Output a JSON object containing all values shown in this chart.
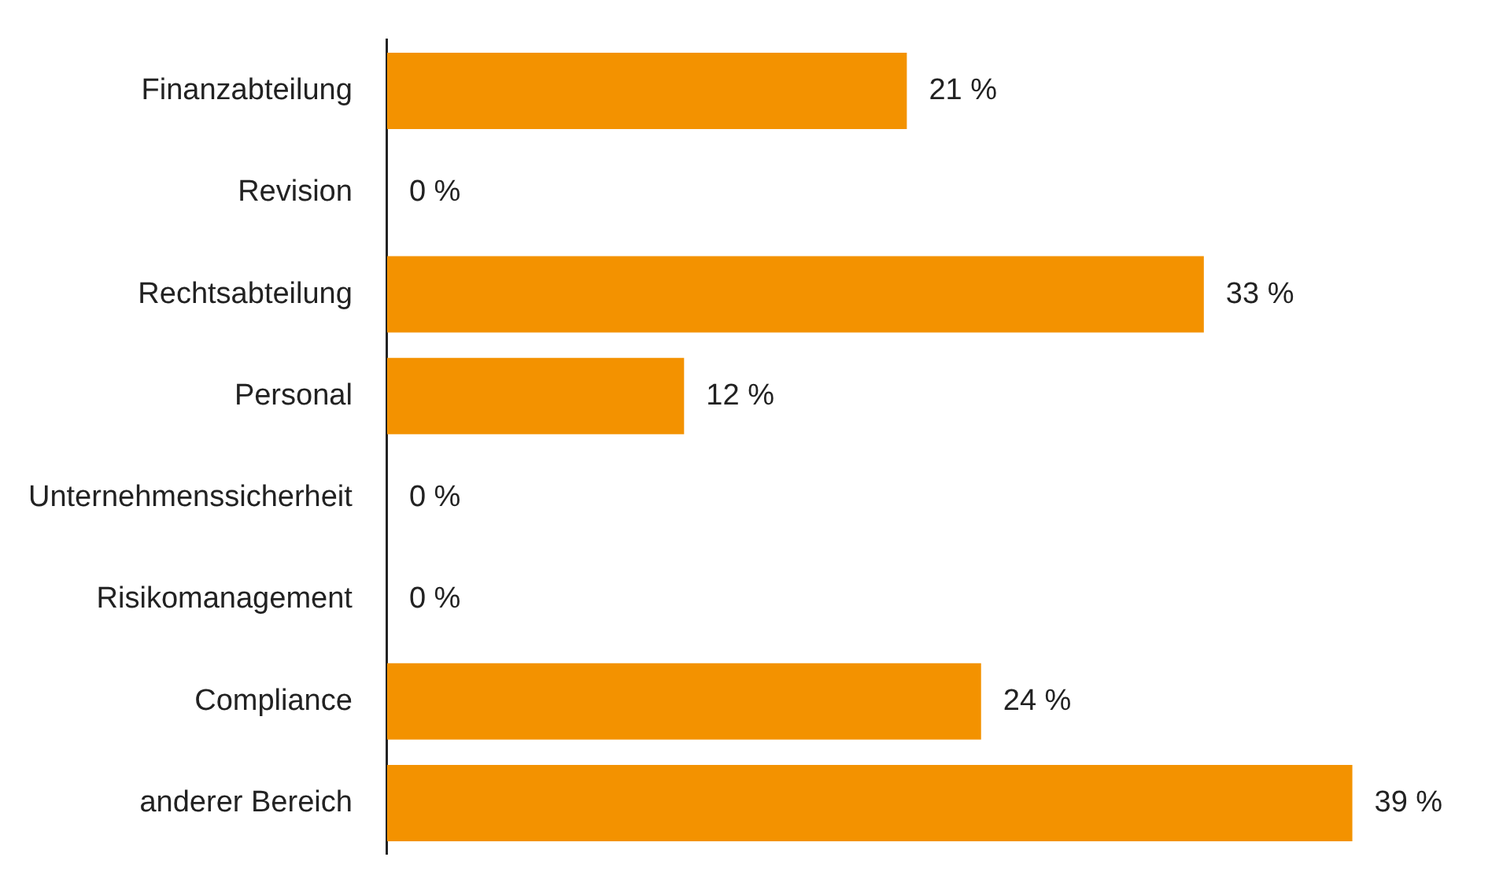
{
  "chart_data": {
    "type": "bar",
    "orientation": "horizontal",
    "categories": [
      "Finanzabteilung",
      "Revision",
      "Rechtsabteilung",
      "Personal",
      "Unternehmenssicherheit",
      "Risikomanagement",
      "Compliance",
      "anderer Bereich"
    ],
    "values": [
      21,
      0,
      33,
      12,
      0,
      0,
      24,
      39
    ],
    "value_labels": [
      "21 %",
      "0 %",
      "33 %",
      "12 %",
      "0 %",
      "0 %",
      "24 %",
      "39 %"
    ],
    "color": "#f39200",
    "tick_labels": "y"
  }
}
